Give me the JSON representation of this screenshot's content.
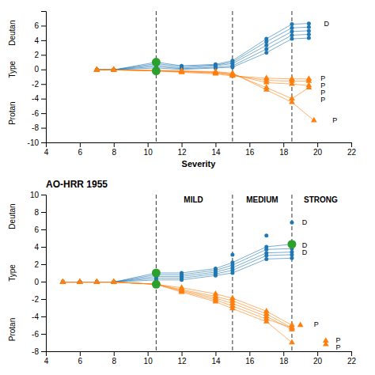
{
  "chart_data": [
    {
      "type": "line",
      "xlabel": "Severity",
      "xlim": [
        4,
        22
      ],
      "ylim": [
        -10,
        8
      ],
      "xticks": [
        4,
        6,
        8,
        10,
        12,
        14,
        16,
        18,
        20,
        22
      ],
      "yticks": [
        -10,
        -8,
        -6,
        -4,
        -2,
        0,
        2,
        4,
        6
      ],
      "vlines": [
        10.5,
        15,
        18.5
      ],
      "series": [
        {
          "type": "line",
          "marker": "circle",
          "x": [
            7,
            8,
            10.5,
            12,
            14,
            15,
            17,
            18.5,
            19.5
          ],
          "values": [
            -0.05,
            -0.05,
            1.0,
            0.5,
            0.7,
            1.2,
            4.2,
            6.2,
            6.3
          ]
        },
        {
          "type": "line",
          "marker": "circle",
          "x": [
            7,
            8,
            10.5,
            12,
            14,
            15,
            17,
            18.5,
            19.5
          ],
          "values": [
            -0.05,
            -0.05,
            0.8,
            0.4,
            0.6,
            1.0,
            3.8,
            5.7,
            5.8
          ]
        },
        {
          "type": "line",
          "marker": "circle",
          "x": [
            7,
            8,
            10.5,
            12,
            14,
            15,
            17,
            18.5,
            19.5
          ],
          "values": [
            -0.05,
            -0.05,
            0.6,
            0.2,
            0.5,
            0.8,
            3.3,
            5.2,
            5.3
          ]
        },
        {
          "type": "line",
          "marker": "circle",
          "x": [
            7,
            8,
            10.5,
            12,
            14,
            15,
            17,
            18.5,
            19.5
          ],
          "values": [
            -0.05,
            -0.05,
            0.4,
            0.1,
            0.3,
            0.5,
            2.8,
            4.7,
            4.8
          ]
        },
        {
          "type": "line",
          "marker": "circle",
          "x": [
            7,
            8,
            10.5,
            12,
            14,
            15,
            17,
            18.5,
            19.5
          ],
          "values": [
            -0.05,
            -0.05,
            0.2,
            0.0,
            0.2,
            0.3,
            2.3,
            4.2,
            4.3
          ]
        },
        {
          "type": "scatter",
          "marker": "large-circle",
          "x": [
            10.5
          ],
          "values": [
            1.0
          ]
        },
        {
          "type": "line",
          "marker": "triangle",
          "x": [
            7,
            8,
            10.5,
            12,
            14,
            15,
            17,
            18.5,
            19.5
          ],
          "values": [
            -0.05,
            -0.05,
            -0.2,
            -0.4,
            -0.6,
            -0.9,
            -1.2,
            -1.3,
            -1.3
          ]
        },
        {
          "type": "line",
          "marker": "triangle",
          "x": [
            7,
            8,
            10.5,
            12,
            14,
            15,
            17,
            18.5,
            19.5
          ],
          "values": [
            -0.05,
            -0.05,
            -0.2,
            -0.3,
            -0.5,
            -0.8,
            -1.5,
            -1.6,
            -1.6
          ]
        },
        {
          "type": "line",
          "marker": "triangle",
          "x": [
            7,
            8,
            10.5,
            12,
            14,
            15,
            17,
            18.5,
            19.5
          ],
          "values": [
            -0.05,
            -0.05,
            -0.2,
            -0.3,
            -0.4,
            -0.7,
            -1.8,
            -2.0,
            -2.2
          ]
        },
        {
          "type": "line",
          "marker": "triangle",
          "x": [
            7,
            8,
            10.5,
            12,
            14,
            15,
            17,
            18.5,
            19.5
          ],
          "values": [
            -0.05,
            -0.05,
            -0.2,
            -0.2,
            -0.4,
            -0.6,
            -2.5,
            -4.0,
            -2.5
          ]
        },
        {
          "type": "line",
          "marker": "triangle",
          "x": [
            7,
            8,
            10.5,
            12,
            14,
            15,
            17,
            18.5,
            19.8
          ],
          "values": [
            -0.05,
            -0.05,
            -0.1,
            -0.2,
            -0.3,
            -0.5,
            -2.8,
            -4.5,
            -7.0
          ]
        },
        {
          "type": "scatter",
          "marker": "large-circle",
          "x": [
            10.5
          ],
          "values": [
            -0.2
          ]
        }
      ],
      "annotations": [
        {
          "text": "D",
          "x": 20.3,
          "y": 6.2
        },
        {
          "text": "P",
          "x": 20.1,
          "y": -1.3
        },
        {
          "text": "P",
          "x": 20.1,
          "y": -1.6
        },
        {
          "text": "P",
          "x": 20.1,
          "y": -2.2
        },
        {
          "text": "P",
          "x": 20.1,
          "y": -2.5
        },
        {
          "text": "P",
          "x": 20.8,
          "y": -7.0
        },
        {
          "text": "Deutan",
          "y": 5.0
        },
        {
          "text": "Type",
          "y": 0.0
        },
        {
          "text": "Protan",
          "y": -6.0
        }
      ]
    },
    {
      "type": "line",
      "title": "AO-HRR 1955",
      "xlim": [
        4,
        22
      ],
      "ylim": [
        -8,
        10
      ],
      "xticks": [
        4,
        6,
        8,
        10,
        12,
        14,
        16,
        18,
        20,
        22
      ],
      "yticks": [
        -8,
        -6,
        -4,
        -2,
        0,
        2,
        4,
        6,
        8,
        10
      ],
      "vlines": [
        10.5,
        15,
        18.5
      ],
      "series": [
        {
          "type": "line",
          "marker": "circle",
          "x": [
            5,
            6,
            7,
            8,
            10.5,
            12,
            14,
            15,
            17,
            18.5
          ],
          "values": [
            -0.05,
            -0.05,
            -0.05,
            -0.05,
            1.0,
            1.0,
            1.5,
            2.2,
            4.0,
            4.3
          ]
        },
        {
          "type": "line",
          "marker": "circle",
          "x": [
            5,
            6,
            7,
            8,
            10.5,
            12,
            14,
            15,
            17,
            18.5
          ],
          "values": [
            -0.05,
            -0.05,
            -0.05,
            -0.05,
            0.8,
            0.8,
            1.3,
            1.9,
            3.7,
            3.8
          ]
        },
        {
          "type": "line",
          "marker": "circle",
          "x": [
            5,
            6,
            7,
            8,
            10.5,
            12,
            14,
            15,
            17,
            18.5
          ],
          "values": [
            -0.05,
            -0.05,
            -0.05,
            -0.05,
            0.6,
            0.6,
            1.1,
            1.6,
            3.3,
            3.4
          ]
        },
        {
          "type": "line",
          "marker": "circle",
          "x": [
            5,
            6,
            7,
            8,
            10.5,
            12,
            14,
            15,
            17,
            18.5
          ],
          "values": [
            -0.05,
            -0.05,
            -0.05,
            -0.05,
            0.4,
            0.4,
            0.9,
            1.3,
            3.0,
            3.1
          ]
        },
        {
          "type": "line",
          "marker": "circle",
          "x": [
            5,
            6,
            7,
            8,
            10.5,
            12,
            14,
            15,
            17,
            18.5
          ],
          "values": [
            -0.05,
            -0.05,
            -0.05,
            -0.05,
            0.2,
            0.2,
            0.7,
            1.0,
            2.6,
            2.7
          ]
        },
        {
          "type": "scatter",
          "marker": "large-circle",
          "x": [
            10.5
          ],
          "values": [
            1.0
          ]
        },
        {
          "type": "scatter",
          "marker": "circle",
          "x": [
            15,
            17,
            18.5
          ],
          "values": [
            3.1,
            5.3,
            6.8
          ]
        },
        {
          "type": "scatter",
          "marker": "large-circle",
          "x": [
            18.5
          ],
          "values": [
            4.3
          ]
        },
        {
          "type": "line",
          "marker": "triangle",
          "x": [
            5,
            6,
            7,
            8,
            10.5,
            12,
            14,
            15,
            17,
            18.5
          ],
          "values": [
            -0.05,
            -0.05,
            -0.05,
            -0.05,
            -0.3,
            -0.7,
            -1.4,
            -1.9,
            -3.4,
            -5.0
          ]
        },
        {
          "type": "line",
          "marker": "triangle",
          "x": [
            5,
            6,
            7,
            8,
            10.5,
            12,
            14,
            15,
            17,
            18.5
          ],
          "values": [
            -0.05,
            -0.05,
            -0.05,
            -0.05,
            -0.3,
            -0.9,
            -1.7,
            -2.2,
            -3.7,
            -5.3
          ]
        },
        {
          "type": "line",
          "marker": "triangle",
          "x": [
            5,
            6,
            7,
            8,
            10.5,
            12,
            14,
            15,
            17,
            18.5
          ],
          "values": [
            -0.05,
            -0.05,
            -0.05,
            -0.05,
            -0.3,
            -1.0,
            -1.9,
            -2.5,
            -4.0,
            -5.5
          ]
        },
        {
          "type": "line",
          "marker": "triangle",
          "x": [
            5,
            6,
            7,
            8,
            10.5,
            12,
            14,
            15,
            17,
            18.5
          ],
          "values": [
            -0.05,
            -0.05,
            -0.05,
            -0.05,
            -0.3,
            -1.1,
            -2.1,
            -2.8,
            -4.3,
            -5.3
          ]
        },
        {
          "type": "line",
          "marker": "triangle",
          "x": [
            5,
            6,
            7,
            8,
            10.5,
            12,
            14,
            15,
            17,
            18.5
          ],
          "values": [
            -0.05,
            -0.05,
            -0.05,
            -0.05,
            -0.3,
            -1.2,
            -2.3,
            -3.1,
            -4.6,
            -7.0
          ]
        },
        {
          "type": "scatter",
          "marker": "large-circle",
          "x": [
            10.5
          ],
          "values": [
            -0.3
          ]
        },
        {
          "type": "scatter",
          "marker": "triangle",
          "x": [
            19.0,
            20.5,
            20.5
          ],
          "values": [
            -5.0,
            -6.8,
            -7.2
          ]
        }
      ],
      "annotations": [
        {
          "text": "MILD",
          "x": 12.7
        },
        {
          "text": "MEDIUM",
          "x": 16.75
        },
        {
          "text": "STRONG",
          "x": 20.2
        },
        {
          "text": "D",
          "x": 19.0,
          "y": 6.8
        },
        {
          "text": "D",
          "x": 19.0,
          "y": 4.1
        },
        {
          "text": "D",
          "x": 19.0,
          "y": 3.3
        },
        {
          "text": "P",
          "x": 19.7,
          "y": -5.0
        },
        {
          "text": "P",
          "x": 21.0,
          "y": -6.8
        },
        {
          "text": "P",
          "x": 21.0,
          "y": -7.2
        },
        {
          "text": "Deutan",
          "y": 7.5
        },
        {
          "text": "Type",
          "y": 1.0
        },
        {
          "text": "Protan",
          "y": -5.5
        }
      ]
    }
  ]
}
